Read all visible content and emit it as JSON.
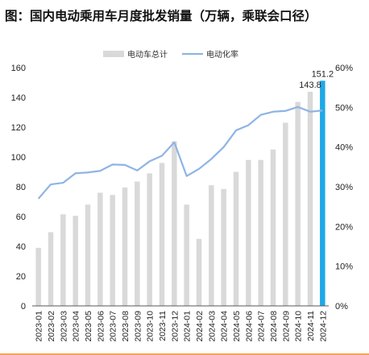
{
  "title": "图：国内电动乘用车月度批发销量（万辆，乘联会口径）",
  "chart_data": {
    "type": "bar",
    "categories": [
      "2023-01",
      "2023-02",
      "2023-03",
      "2023-04",
      "2023-05",
      "2023-06",
      "2023-07",
      "2023-08",
      "2023-09",
      "2023-10",
      "2023-11",
      "2023-12",
      "2024-01",
      "2024-02",
      "2024-03",
      "2024-04",
      "2024-05",
      "2024-06",
      "2024-07",
      "2024-08",
      "2024-09",
      "2024-10",
      "2024-11",
      "2024-12"
    ],
    "series": [
      {
        "name": "电动车总计",
        "type": "bar",
        "axis": "left",
        "values": [
          39,
          49.5,
          61.5,
          60.5,
          68,
          76,
          74.5,
          79.5,
          83.5,
          89,
          96,
          110.5,
          68,
          45,
          81,
          78.5,
          90,
          98,
          98,
          105,
          123,
          137,
          143.8,
          151.2
        ]
      },
      {
        "name": "电动化率",
        "type": "line",
        "axis": "right",
        "values": [
          0.27,
          0.306,
          0.31,
          0.334,
          0.336,
          0.34,
          0.356,
          0.355,
          0.341,
          0.364,
          0.378,
          0.412,
          0.327,
          0.345,
          0.37,
          0.4,
          0.442,
          0.455,
          0.481,
          0.489,
          0.491,
          0.501,
          0.489,
          0.492
        ]
      }
    ],
    "data_labels": [
      {
        "category": "2024-11",
        "text": "143.8"
      },
      {
        "category": "2024-12",
        "text": "151.2"
      }
    ],
    "y_left": {
      "min": 0,
      "max": 160,
      "ticks": [
        "0",
        "20",
        "40",
        "60",
        "80",
        "100",
        "120",
        "140",
        "160"
      ]
    },
    "y_right": {
      "min": 0,
      "max": 0.6,
      "ticks": [
        "0%",
        "10%",
        "20%",
        "30%",
        "40%",
        "50%",
        "60%"
      ]
    },
    "grid": false,
    "legend_position": "top-center",
    "colors": {
      "bar": "#d9d9d9",
      "highlight_bar": "#1fa8e6",
      "line": "#8fb4e3",
      "axis": "#595959"
    }
  }
}
